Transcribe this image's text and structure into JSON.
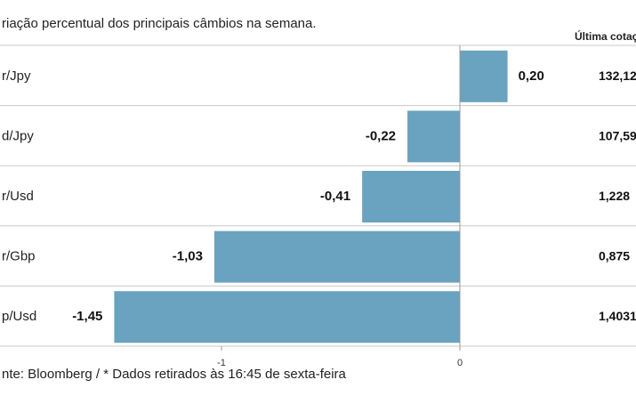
{
  "chart_data": {
    "type": "bar",
    "orientation": "horizontal",
    "title": "riação percentual dos principais câmbios na semana.",
    "last_quote_header": "Última cotaç",
    "categories": [
      "r/Jpy",
      "d/Jpy",
      "r/Usd",
      "r/Gbp",
      "p/Usd"
    ],
    "values": [
      0.2,
      -0.22,
      -0.41,
      -1.03,
      -1.45
    ],
    "value_labels": [
      "0,20",
      "-0,22",
      "-0,41",
      "-1,03",
      "-1,45"
    ],
    "last_quotes": [
      "132,12",
      "107,59",
      "1,228",
      "0,875",
      "1,4031"
    ],
    "x_ticks": [
      {
        "value": -1,
        "label": "-1"
      },
      {
        "value": 0,
        "label": "0"
      }
    ],
    "xlim": [
      -1.955,
      0.3
    ],
    "grid": false,
    "legend": "none",
    "source": "nte: Bloomberg / * Dados retirados às 16:45 de sexta-feira",
    "colors": {
      "bar": "#6aa3bf",
      "separator": "#c8c8c8",
      "axis": "#999999"
    }
  }
}
